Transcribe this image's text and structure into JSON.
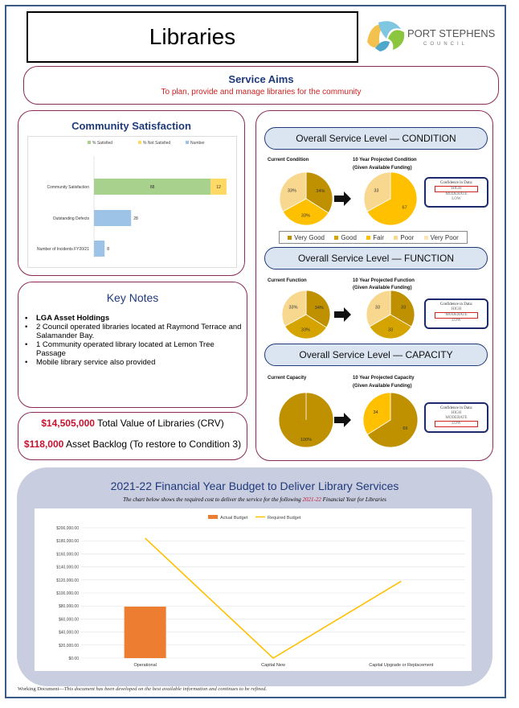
{
  "header": {
    "title": "Libraries",
    "logo_text": "PORT STEPHENS",
    "logo_sub": "COUNCIL"
  },
  "service_aims": {
    "title": "Service Aims",
    "text": "To plan, provide and manage libraries for the community"
  },
  "satisfaction": {
    "title": "Community Satisfaction",
    "chart_data": {
      "type": "bar",
      "orientation": "horizontal",
      "legend": [
        "% Satisfied",
        "% Not Satisfied",
        "Number"
      ],
      "categories": [
        "Community Satisfaction",
        "Outstanding Defects",
        "Number of Incidents FY20/21"
      ],
      "series": [
        {
          "name": "% Satisfied",
          "values": [
            88,
            null,
            null
          ]
        },
        {
          "name": "% Not Satisfied",
          "values": [
            12,
            null,
            null
          ]
        },
        {
          "name": "Number",
          "values": [
            null,
            28,
            8
          ]
        }
      ],
      "data_labels": [
        "88",
        "12",
        "28",
        "8"
      ],
      "xlim": [
        0,
        100
      ],
      "colors": {
        "satisfied": "#a9d18e",
        "not_satisfied": "#ffd966",
        "number": "#9dc3e6"
      }
    }
  },
  "key_notes": {
    "title": "Key Notes",
    "items": [
      "LGA Asset Holdings",
      "2 Council operated libraries located at Raymond Terrace and Salamander Bay.",
      "1 Community operated library located at Lemon Tree Passage",
      "Mobile library service also provided"
    ]
  },
  "values": {
    "crv_amount": "$14,505,000",
    "crv_label": " Total Value of Libraries (CRV)",
    "backlog_amount": "$118,000",
    "backlog_label": " Asset Backlog (To restore to Condition 3)"
  },
  "service_levels": {
    "condition_title": "Overall Service Level — CONDITION",
    "function_title": "Overall Service Level — FUNCTION",
    "capacity_title": "Overall Service Level — CAPACITY",
    "current_condition_label": "Current Condition",
    "projected_condition_label": "10 Year Projected Condition",
    "current_function_label": "Current Function",
    "projected_function_label": "10 Year Projected Function",
    "current_capacity_label": "Current Capacity",
    "projected_capacity_label": "10 Year Projected Capacity",
    "funding_note": "(Given Available Funding)",
    "confidence": {
      "title": "Confidence in Data:",
      "high": "HIGH",
      "moderate": "MODERATE",
      "low": "LOW"
    },
    "legend": [
      "Very Good",
      "Good",
      "Fair",
      "Poor",
      "Very Poor"
    ],
    "colors": {
      "very_good": "#bf9000",
      "good": "#d6a400",
      "fair": "#ffc000",
      "poor": "#f8d88f",
      "very_poor": "#fbe5b6"
    },
    "chart_data": [
      {
        "type": "pie",
        "name": "current_condition",
        "slices": [
          {
            "label": "Very Good",
            "value": 34,
            "text": "34%"
          },
          {
            "label": "Fair",
            "value": 33,
            "text": "33%"
          },
          {
            "label": "Poor",
            "value": 33,
            "text": "33%"
          }
        ]
      },
      {
        "type": "pie",
        "name": "projected_condition",
        "slices": [
          {
            "label": "Fair",
            "value": 67,
            "text": "67"
          },
          {
            "label": "Poor",
            "value": 33,
            "text": "33"
          }
        ]
      },
      {
        "type": "pie",
        "name": "current_function",
        "slices": [
          {
            "label": "Very Good",
            "value": 34,
            "text": "34%"
          },
          {
            "label": "Good",
            "value": 33,
            "text": "33%"
          },
          {
            "label": "Poor",
            "value": 33,
            "text": "33%"
          }
        ]
      },
      {
        "type": "pie",
        "name": "projected_function",
        "slices": [
          {
            "label": "Very Good",
            "value": 33,
            "text": "33"
          },
          {
            "label": "Good",
            "value": 33,
            "text": "33"
          },
          {
            "label": "Poor",
            "value": 33,
            "text": "33"
          }
        ]
      },
      {
        "type": "pie",
        "name": "current_capacity",
        "slices": [
          {
            "label": "Very Good",
            "value": 100,
            "text": "100%"
          }
        ]
      },
      {
        "type": "pie",
        "name": "projected_capacity",
        "slices": [
          {
            "label": "Very Good",
            "value": 66,
            "text": "66"
          },
          {
            "label": "Fair",
            "value": 34,
            "text": "34"
          }
        ]
      }
    ]
  },
  "budget": {
    "title": "2021-22 Financial Year Budget to Deliver Library Services",
    "subtitle_pre": "The chart below shows the required cost to deliver the service for the following ",
    "subtitle_year": "2021-22",
    "subtitle_post": " Financial Year for Libraries",
    "chart_data": {
      "type": "bar",
      "categories": [
        "Operational",
        "Capital New",
        "Capital Upgrade or Replacement"
      ],
      "series": [
        {
          "name": "Actual Budget",
          "kind": "bar",
          "values": [
            79000,
            0,
            0
          ]
        },
        {
          "name": "Required Budget",
          "kind": "line",
          "values": [
            184000,
            0,
            118000
          ]
        }
      ],
      "y_ticks": [
        "$0.00",
        "$20,000.00",
        "$40,000.00",
        "$60,000.00",
        "$80,000.00",
        "$100,000.00",
        "$120,000.00",
        "$140,000.00",
        "$160,000.00",
        "$180,000.00",
        "$200,000.00"
      ],
      "ylim": [
        0,
        200000
      ],
      "colors": {
        "actual": "#ed7d31",
        "required": "#ffc000"
      }
    }
  },
  "footer": {
    "lead": "Working Document—",
    "text": "This document has been developed on the best available information and continues to be refined."
  }
}
